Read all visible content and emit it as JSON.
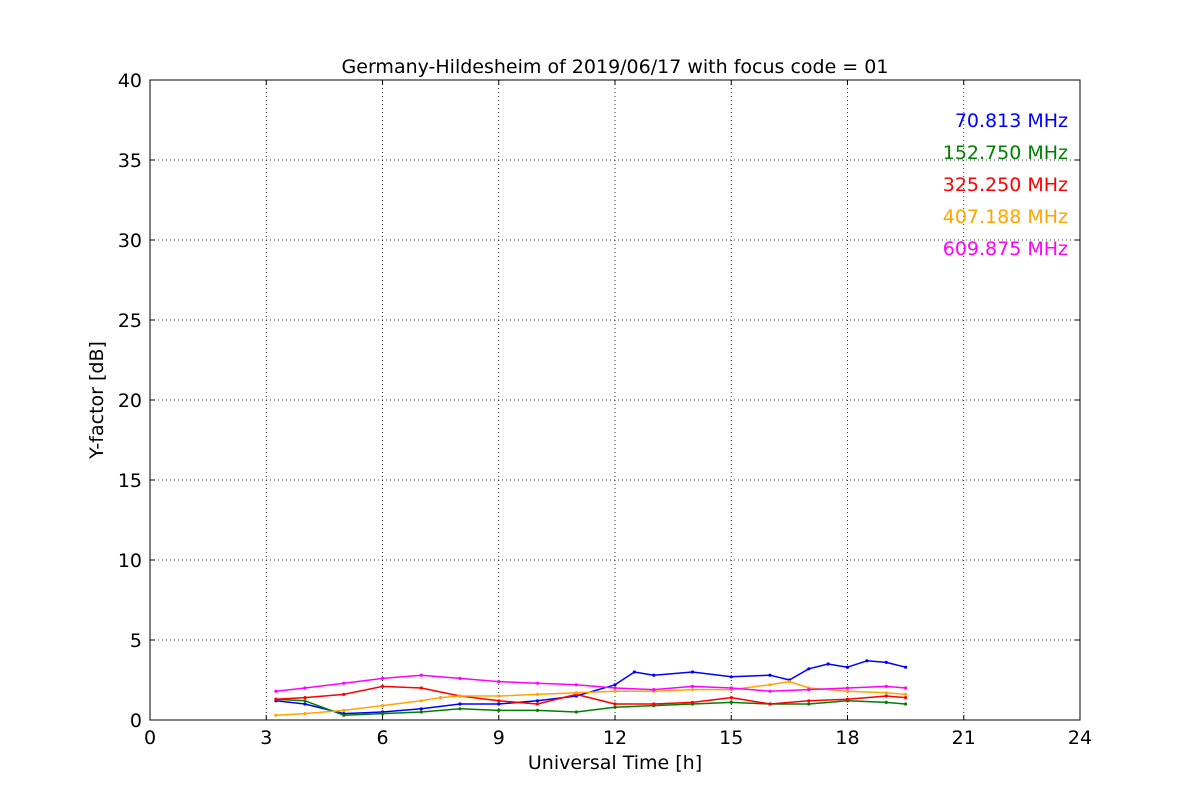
{
  "chart_data": {
    "type": "line",
    "title": "Germany-Hildesheim of 2019/06/17 with focus code = 01",
    "xlabel": "Universal Time [h]",
    "ylabel": "Y-factor [dB]",
    "xlim": [
      0,
      24
    ],
    "ylim": [
      0,
      40
    ],
    "xticks": [
      0,
      3,
      6,
      9,
      12,
      15,
      18,
      21,
      24
    ],
    "yticks": [
      0,
      5,
      10,
      15,
      20,
      25,
      30,
      35,
      40
    ],
    "grid": true,
    "legend_position": "top-right",
    "series": [
      {
        "name": "70.813 MHz",
        "color": "#0000ff",
        "x": [
          3.25,
          4,
          5,
          6,
          7,
          8,
          9,
          10,
          11,
          12,
          12.5,
          13,
          14,
          15,
          16,
          16.5,
          17,
          17.5,
          18,
          18.5,
          19,
          19.5
        ],
        "y": [
          1.2,
          1.0,
          0.4,
          0.5,
          0.7,
          1.0,
          1.0,
          1.2,
          1.5,
          2.2,
          3.0,
          2.8,
          3.0,
          2.7,
          2.8,
          2.5,
          3.2,
          3.5,
          3.3,
          3.7,
          3.6,
          3.3
        ]
      },
      {
        "name": "152.750 MHz",
        "color": "#008000",
        "x": [
          3.25,
          4,
          5,
          6,
          7,
          8,
          9,
          10,
          11,
          12,
          13,
          14,
          15,
          16,
          17,
          18,
          19,
          19.5
        ],
        "y": [
          1.3,
          1.2,
          0.3,
          0.4,
          0.5,
          0.7,
          0.6,
          0.6,
          0.5,
          0.8,
          0.9,
          1.0,
          1.1,
          1.0,
          1.0,
          1.2,
          1.1,
          1.0
        ]
      },
      {
        "name": "325.250 MHz",
        "color": "#ff0000",
        "x": [
          3.25,
          4,
          5,
          6,
          7,
          8,
          9,
          10,
          11,
          12,
          13,
          14,
          15,
          16,
          17,
          18,
          19,
          19.5
        ],
        "y": [
          1.3,
          1.4,
          1.6,
          2.1,
          2.0,
          1.5,
          1.2,
          1.0,
          1.6,
          1.0,
          1.0,
          1.1,
          1.4,
          1.0,
          1.2,
          1.3,
          1.5,
          1.4
        ]
      },
      {
        "name": "407.188 MHz",
        "color": "#ffa500",
        "x": [
          3.25,
          4,
          5,
          6,
          7,
          7.5,
          8,
          9,
          10,
          11,
          12,
          13,
          14,
          15,
          16,
          16.5,
          17,
          18,
          19,
          19.5
        ],
        "y": [
          0.3,
          0.4,
          0.6,
          0.9,
          1.2,
          1.4,
          1.5,
          1.5,
          1.6,
          1.7,
          1.8,
          1.8,
          1.9,
          1.9,
          2.2,
          2.4,
          2.0,
          1.8,
          1.7,
          1.6
        ]
      },
      {
        "name": "609.875 MHz",
        "color": "#ff00ff",
        "x": [
          3.25,
          4,
          5,
          6,
          7,
          8,
          9,
          10,
          11,
          12,
          13,
          14,
          15,
          16,
          17,
          18,
          19,
          19.5
        ],
        "y": [
          1.8,
          2.0,
          2.3,
          2.6,
          2.8,
          2.6,
          2.4,
          2.3,
          2.2,
          2.0,
          1.9,
          2.1,
          2.0,
          1.8,
          1.9,
          2.0,
          2.1,
          2.0
        ]
      }
    ]
  }
}
